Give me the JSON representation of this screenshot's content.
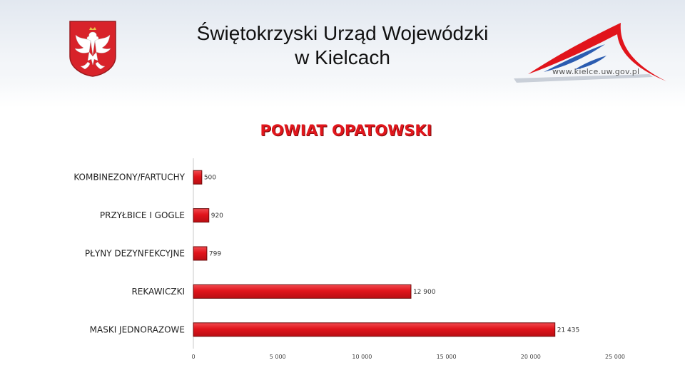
{
  "header": {
    "title_line1": "Świętokrzyski Urząd Wojewódzki",
    "title_line2": "w Kielcach",
    "website": "www.kielce.uw.gov.pl",
    "emblem_icon": "white-eagle-emblem-icon",
    "logo_icon": "mountain-logo-icon",
    "colors": {
      "emblem_red": "#d8232a",
      "logo_red": "#e1141b",
      "logo_blue": "#2b5cb0"
    }
  },
  "chart_data": {
    "type": "bar",
    "orientation": "horizontal",
    "title": "POWIAT OPATOWSKI",
    "categories": [
      "KOMBINEZONY/FARTUCHY",
      "PRZYŁBICE I GOGLE",
      "PŁYNY DEZYNFEKCYJNE",
      "REKAWICZKI",
      "MASKI JEDNORAZOWE"
    ],
    "values": [
      500,
      920,
      799,
      12900,
      21435
    ],
    "value_labels": [
      "500",
      "920",
      "799",
      "12 900",
      "21 435"
    ],
    "xlim": [
      0,
      25000
    ],
    "ticks": [
      0,
      5000,
      10000,
      15000,
      20000,
      25000
    ],
    "tick_labels": [
      "0",
      "5 000",
      "10 000",
      "15 000",
      "20 000",
      "25 000"
    ],
    "grid": false,
    "legend": "none",
    "bar_color": "#e1141b",
    "bar_edge_color": "#6e0a0a"
  }
}
